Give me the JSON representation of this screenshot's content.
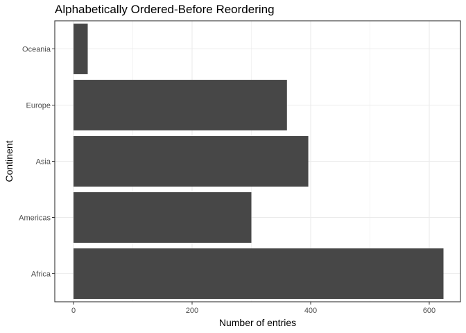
{
  "chart_data": {
    "type": "bar",
    "orientation": "horizontal",
    "title": "Alphabetically Ordered-Before Reordering",
    "xlabel": "Number of entries",
    "ylabel": "Continent",
    "categories": [
      "Africa",
      "Americas",
      "Asia",
      "Europe",
      "Oceania"
    ],
    "values": [
      624,
      300,
      396,
      360,
      24
    ],
    "xlim": [
      0,
      650
    ],
    "xticks": [
      0,
      200,
      400,
      600
    ],
    "grid": true,
    "bar_color": "#474747",
    "grid_color": "#ebebeb",
    "panel_border_color": "#333333"
  }
}
